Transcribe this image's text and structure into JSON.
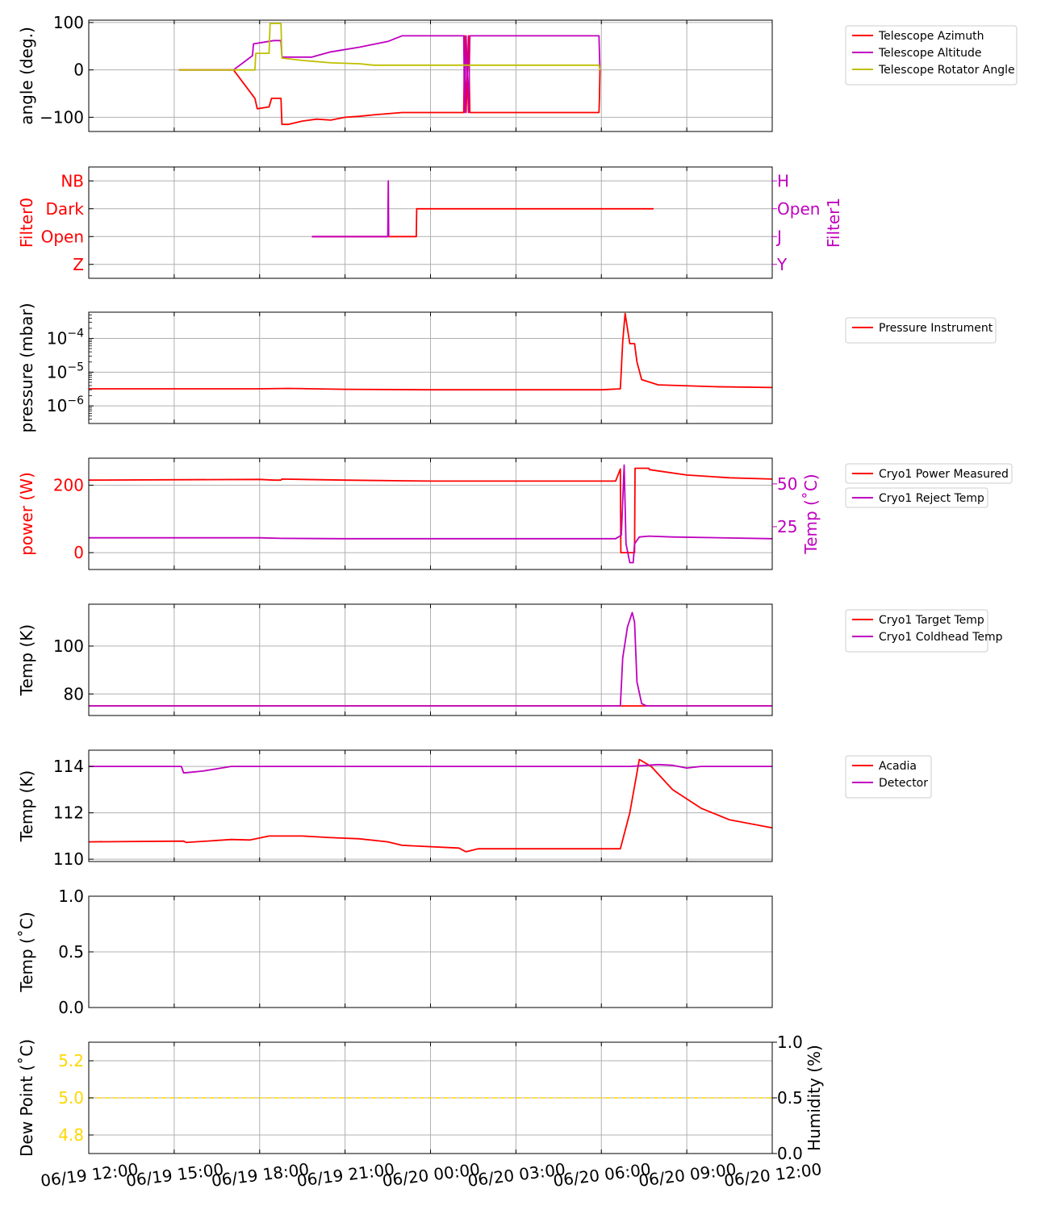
{
  "x_axis": {
    "start": "06/19 12:00",
    "end": "06/20 12:00",
    "tick_labels": [
      "06/19 12:00",
      "06/19 15:00",
      "06/19 18:00",
      "06/19 21:00",
      "06/20 00:00",
      "06/20 03:00",
      "06/20 06:00",
      "06/20 09:00",
      "06/20 12:00"
    ]
  },
  "colors": {
    "red": "#ff0000",
    "magenta": "#bf00bf",
    "olive": "#bfbf00",
    "gold": "#ffd700",
    "grid": "#b0b0b0"
  },
  "chart_data": [
    {
      "type": "line",
      "ylabel": "angle (deg.)",
      "ylim": [
        -130,
        105
      ],
      "yticks": [
        {
          "value": 100,
          "label": "100"
        },
        {
          "value": 0,
          "label": "0"
        },
        {
          "value": -100,
          "label": "−100"
        }
      ],
      "grid": true,
      "legend": "right",
      "series": [
        {
          "name": "Telescope Azimuth",
          "color": "red",
          "points": [
            [
              "06/19 15:10",
              0
            ],
            [
              "06/19 17:05",
              0
            ],
            [
              "06/19 17:50",
              -60
            ],
            [
              "06/19 17:55",
              -82
            ],
            [
              "06/19 18:20",
              -78
            ],
            [
              "06/19 18:25",
              -60
            ],
            [
              "06/19 18:45",
              -60
            ],
            [
              "06/19 18:47",
              -115
            ],
            [
              "06/19 19:00",
              -115
            ],
            [
              "06/19 19:30",
              -108
            ],
            [
              "06/19 20:00",
              -104
            ],
            [
              "06/19 20:30",
              -106
            ],
            [
              "06/19 21:00",
              -100
            ],
            [
              "06/19 21:30",
              -98
            ],
            [
              "06/19 22:00",
              -95
            ],
            [
              "06/19 23:00",
              -90
            ],
            [
              "06/20 01:10",
              -90
            ],
            [
              "06/20 01:12",
              72
            ],
            [
              "06/20 01:15",
              -90
            ],
            [
              "06/20 01:20",
              72
            ],
            [
              "06/20 01:23",
              -90
            ],
            [
              "06/20 05:55",
              -90
            ],
            [
              "06/20 05:56",
              -60
            ],
            [
              "06/20 05:57",
              0
            ]
          ]
        },
        {
          "name": "Telescope Altitude",
          "color": "magenta",
          "points": [
            [
              "06/19 15:10",
              0
            ],
            [
              "06/19 17:05",
              0
            ],
            [
              "06/19 17:45",
              30
            ],
            [
              "06/19 17:47",
              55
            ],
            [
              "06/19 18:30",
              62
            ],
            [
              "06/19 18:45",
              62
            ],
            [
              "06/19 18:47",
              27
            ],
            [
              "06/19 19:50",
              27
            ],
            [
              "06/19 20:30",
              38
            ],
            [
              "06/19 21:30",
              48
            ],
            [
              "06/19 22:30",
              60
            ],
            [
              "06/19 23:00",
              72
            ],
            [
              "06/20 01:10",
              72
            ],
            [
              "06/20 01:12",
              -90
            ],
            [
              "06/20 01:15",
              72
            ],
            [
              "06/20 01:20",
              -90
            ],
            [
              "06/20 01:23",
              72
            ],
            [
              "06/20 05:55",
              72
            ],
            [
              "06/20 05:57",
              0
            ]
          ]
        },
        {
          "name": "Telescope Rotator Angle",
          "color": "olive",
          "points": [
            [
              "06/19 15:10",
              0
            ],
            [
              "06/19 17:50",
              0
            ],
            [
              "06/19 17:52",
              35
            ],
            [
              "06/19 18:20",
              35
            ],
            [
              "06/19 18:22",
              98
            ],
            [
              "06/19 18:45",
              98
            ],
            [
              "06/19 18:47",
              25
            ],
            [
              "06/19 19:30",
              20
            ],
            [
              "06/19 20:30",
              15
            ],
            [
              "06/19 21:30",
              13
            ],
            [
              "06/19 22:00",
              10
            ],
            [
              "06/20 05:55",
              10
            ],
            [
              "06/20 05:57",
              0
            ]
          ]
        }
      ]
    },
    {
      "type": "line",
      "ylabel": "Filter0",
      "ylabel_right": "Filter1",
      "ylim": [
        -0.5,
        3.5
      ],
      "yticks": [
        {
          "value": 3,
          "label": "NB"
        },
        {
          "value": 2,
          "label": "Dark"
        },
        {
          "value": 1,
          "label": "Open"
        },
        {
          "value": 0,
          "label": "Z"
        }
      ],
      "yticks_right": [
        {
          "value": 3,
          "label": "H"
        },
        {
          "value": 2,
          "label": "Open"
        },
        {
          "value": 1,
          "label": "J"
        },
        {
          "value": 0,
          "label": "Y"
        }
      ],
      "grid": true,
      "series": [
        {
          "color": "red",
          "points": [
            [
              "06/19 19:50",
              1
            ],
            [
              "06/19 23:30",
              1
            ],
            [
              "06/19 23:31",
              2
            ],
            [
              "06/20 07:50",
              2
            ]
          ]
        },
        {
          "color": "magenta",
          "points": [
            [
              "06/19 19:50",
              1
            ],
            [
              "06/19 22:30",
              1
            ],
            [
              "06/19 22:31",
              3
            ],
            [
              "06/19 22:32",
              1
            ]
          ]
        }
      ]
    },
    {
      "type": "line",
      "ylabel": "pressure (mbar)",
      "scale": "log",
      "ylim": [
        3e-07,
        0.0006
      ],
      "yticks": [
        {
          "value": 0.0001,
          "label": "10",
          "exp": "−4"
        },
        {
          "value": 1e-05,
          "label": "10",
          "exp": "−5"
        },
        {
          "value": 1e-06,
          "label": "10",
          "exp": "−6"
        }
      ],
      "grid": true,
      "legend": "right",
      "series": [
        {
          "name": "Pressure Instrument",
          "color": "red",
          "points": [
            [
              "06/19 12:00",
              3.2e-06
            ],
            [
              "06/19 18:00",
              3.2e-06
            ],
            [
              "06/19 19:00",
              3.3e-06
            ],
            [
              "06/19 21:00",
              3.1e-06
            ],
            [
              "06/20 00:00",
              3e-06
            ],
            [
              "06/20 06:00",
              3e-06
            ],
            [
              "06/20 06:40",
              3.2e-06
            ],
            [
              "06/20 06:45",
              8e-05
            ],
            [
              "06/20 06:50",
              0.00055
            ],
            [
              "06/20 07:00",
              7e-05
            ],
            [
              "06/20 07:10",
              7e-05
            ],
            [
              "06/20 07:15",
              2e-05
            ],
            [
              "06/20 07:25",
              6e-06
            ],
            [
              "06/20 08:00",
              4.2e-06
            ],
            [
              "06/20 10:00",
              3.7e-06
            ],
            [
              "06/20 12:00",
              3.5e-06
            ]
          ]
        }
      ]
    },
    {
      "type": "line",
      "ylabel": "power (W)",
      "ylabel_right": "Temp (˚C)",
      "ylim": [
        -50,
        280
      ],
      "ylim_right": [
        0,
        65
      ],
      "yticks": [
        {
          "value": 200,
          "label": "200"
        },
        {
          "value": 0,
          "label": "0"
        }
      ],
      "yticks_right": [
        {
          "value": 50,
          "label": "50"
        },
        {
          "value": 25,
          "label": "25"
        }
      ],
      "grid": true,
      "legend": "right",
      "series": [
        {
          "name": "Cryo1 Power Measured",
          "color": "red",
          "axis": "left",
          "points": [
            [
              "06/19 12:00",
              215
            ],
            [
              "06/19 18:00",
              217
            ],
            [
              "06/19 18:30",
              215
            ],
            [
              "06/19 18:45",
              215
            ],
            [
              "06/19 18:47",
              218
            ],
            [
              "06/19 21:00",
              215
            ],
            [
              "06/20 00:00",
              212
            ],
            [
              "06/20 06:30",
              212
            ],
            [
              "06/20 06:40",
              248
            ],
            [
              "06/20 06:41",
              0
            ],
            [
              "06/20 07:10",
              0
            ],
            [
              "06/20 07:11",
              250
            ],
            [
              "06/20 07:40",
              250
            ],
            [
              "06/20 07:41",
              246
            ],
            [
              "06/20 09:00",
              230
            ],
            [
              "06/20 10:30",
              222
            ],
            [
              "06/20 12:00",
              218
            ]
          ]
        },
        {
          "name": "Cryo1 Reject Temp",
          "color": "magenta",
          "axis": "right",
          "points": [
            [
              "06/19 12:00",
              18.5
            ],
            [
              "06/19 18:00",
              18.5
            ],
            [
              "06/19 18:45",
              18.2
            ],
            [
              "06/19 21:00",
              18
            ],
            [
              "06/20 06:30",
              18
            ],
            [
              "06/20 06:42",
              20
            ],
            [
              "06/20 06:45",
              40
            ],
            [
              "06/20 06:48",
              61
            ],
            [
              "06/20 06:52",
              15
            ],
            [
              "06/20 07:00",
              4
            ],
            [
              "06/20 07:07",
              4
            ],
            [
              "06/20 07:10",
              15
            ],
            [
              "06/20 07:20",
              19
            ],
            [
              "06/20 07:40",
              19.5
            ],
            [
              "06/20 08:30",
              19
            ],
            [
              "06/20 12:00",
              18
            ]
          ]
        }
      ]
    },
    {
      "type": "line",
      "ylabel": "Temp (K)",
      "ylim": [
        71,
        117.5
      ],
      "yticks": [
        {
          "value": 100,
          "label": "100"
        },
        {
          "value": 80,
          "label": "80"
        }
      ],
      "grid": true,
      "legend": "right",
      "series": [
        {
          "name": "Cryo1 Target Temp",
          "color": "red",
          "points": [
            [
              "06/19 12:00",
              75
            ],
            [
              "06/20 12:00",
              75
            ]
          ]
        },
        {
          "name": "Cryo1 Coldhead Temp",
          "color": "magenta",
          "points": [
            [
              "06/19 12:00",
              75
            ],
            [
              "06/20 06:40",
              75
            ],
            [
              "06/20 06:45",
              95
            ],
            [
              "06/20 06:55",
              108
            ],
            [
              "06/20 07:05",
              114
            ],
            [
              "06/20 07:10",
              110
            ],
            [
              "06/20 07:15",
              85
            ],
            [
              "06/20 07:25",
              76
            ],
            [
              "06/20 07:35",
              75
            ],
            [
              "06/20 12:00",
              75
            ]
          ]
        }
      ]
    },
    {
      "type": "line",
      "ylabel": "Temp (K)",
      "ylim": [
        109.9,
        114.7
      ],
      "yticks": [
        {
          "value": 114,
          "label": "114"
        },
        {
          "value": 112,
          "label": "112"
        },
        {
          "value": 110,
          "label": "110"
        }
      ],
      "grid": true,
      "legend": "right",
      "series": [
        {
          "name": "Acadia",
          "color": "red",
          "points": [
            [
              "06/19 12:00",
              110.75
            ],
            [
              "06/19 15:20",
              110.78
            ],
            [
              "06/19 15:25",
              110.72
            ],
            [
              "06/19 17:00",
              110.85
            ],
            [
              "06/19 17:40",
              110.83
            ],
            [
              "06/19 18:20",
              111
            ],
            [
              "06/19 19:30",
              111
            ],
            [
              "06/19 20:30",
              110.93
            ],
            [
              "06/19 21:30",
              110.88
            ],
            [
              "06/19 22:30",
              110.75
            ],
            [
              "06/19 23:00",
              110.6
            ],
            [
              "06/20 01:00",
              110.48
            ],
            [
              "06/20 01:15",
              110.32
            ],
            [
              "06/20 01:40",
              110.45
            ],
            [
              "06/20 06:40",
              110.45
            ],
            [
              "06/20 07:00",
              112
            ],
            [
              "06/20 07:20",
              114.3
            ],
            [
              "06/20 07:45",
              114
            ],
            [
              "06/20 08:30",
              113
            ],
            [
              "06/20 09:30",
              112.2
            ],
            [
              "06/20 10:30",
              111.7
            ],
            [
              "06/20 12:00",
              111.35
            ]
          ]
        },
        {
          "name": "Detector",
          "color": "magenta",
          "points": [
            [
              "06/19 12:00",
              114
            ],
            [
              "06/19 15:15",
              114
            ],
            [
              "06/19 15:20",
              113.72
            ],
            [
              "06/19 16:00",
              113.8
            ],
            [
              "06/19 17:00",
              114
            ],
            [
              "06/20 07:00",
              114
            ],
            [
              "06/20 08:00",
              114.08
            ],
            [
              "06/20 08:30",
              114.05
            ],
            [
              "06/20 09:00",
              113.93
            ],
            [
              "06/20 09:30",
              114
            ],
            [
              "06/20 12:00",
              114
            ]
          ]
        }
      ]
    },
    {
      "type": "line",
      "ylabel": "Temp (˚C)",
      "ylim": [
        0,
        1
      ],
      "yticks": [
        {
          "value": 1,
          "label": "1.0"
        },
        {
          "value": 0.5,
          "label": "0.5"
        },
        {
          "value": 0,
          "label": "0.0"
        }
      ],
      "grid": true,
      "series": []
    },
    {
      "type": "line",
      "ylabel": "Dew Point (˚C)",
      "ylabel_right": "Humidity (%)",
      "ylim": [
        4.7,
        5.3
      ],
      "ylim_right": [
        0,
        1
      ],
      "yticks": [
        {
          "value": 5.2,
          "label": "5.2"
        },
        {
          "value": 5.0,
          "label": "5.0"
        },
        {
          "value": 4.8,
          "label": "4.8"
        }
      ],
      "yticks_right": [
        {
          "value": 1,
          "label": "1.0"
        },
        {
          "value": 0.5,
          "label": "0.5"
        },
        {
          "value": 0,
          "label": "0.0"
        }
      ],
      "grid": true,
      "series": [
        {
          "color": "gold",
          "style": "dashed",
          "points": [
            [
              "06/19 12:00",
              5.0
            ],
            [
              "06/20 12:00",
              5.0
            ]
          ]
        }
      ]
    }
  ]
}
